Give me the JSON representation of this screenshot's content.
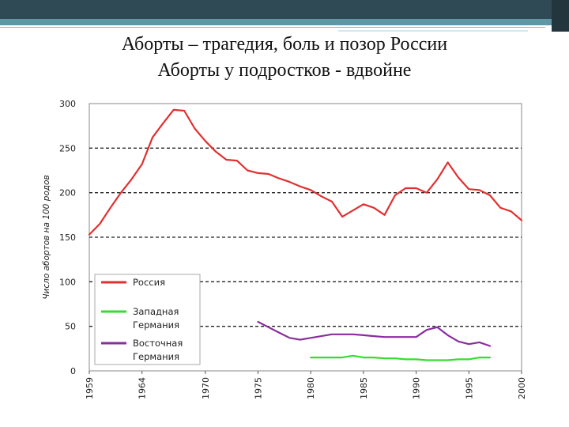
{
  "slide": {
    "title_line1": "Аборты – трагедия, боль и позор России",
    "title_line2": "Аборты у подростков - вдвойне"
  },
  "chart_data": {
    "type": "line",
    "ylabel": "Число абортов на 100 родов",
    "xlim": [
      1959,
      2000
    ],
    "ylim": [
      0,
      300
    ],
    "x_ticks": [
      1959,
      1964,
      1970,
      1975,
      1980,
      1985,
      1990,
      1995,
      2000
    ],
    "y_ticks": [
      0,
      50,
      100,
      150,
      200,
      250,
      300
    ],
    "grid": "horizontal-dashed",
    "legend_position": "bottom-left",
    "series": [
      {
        "name": "Россия",
        "color": "#e03030",
        "x": [
          1959,
          1960,
          1961,
          1962,
          1963,
          1964,
          1965,
          1966,
          1967,
          1968,
          1969,
          1970,
          1971,
          1972,
          1973,
          1974,
          1975,
          1976,
          1977,
          1978,
          1979,
          1980,
          1981,
          1982,
          1983,
          1984,
          1985,
          1986,
          1987,
          1988,
          1989,
          1990,
          1991,
          1992,
          1993,
          1994,
          1995,
          1996,
          1997,
          1998,
          1999,
          2000
        ],
        "values": [
          153,
          165,
          183,
          200,
          215,
          232,
          262,
          278,
          293,
          292,
          272,
          258,
          246,
          237,
          236,
          225,
          222,
          221,
          216,
          212,
          207,
          203,
          196,
          190,
          173,
          180,
          187,
          183,
          175,
          197,
          205,
          205,
          200,
          215,
          234,
          217,
          204,
          203,
          197,
          183,
          179,
          169
        ]
      },
      {
        "name": "Западная Германия",
        "color": "#33dd33",
        "x": [
          1980,
          1981,
          1982,
          1983,
          1984,
          1985,
          1986,
          1987,
          1988,
          1989,
          1990,
          1991,
          1992,
          1993,
          1994,
          1995,
          1996,
          1997
        ],
        "values": [
          15,
          15,
          15,
          15,
          17,
          15,
          15,
          14,
          14,
          13,
          13,
          12,
          12,
          12,
          13,
          13,
          15,
          15
        ]
      },
      {
        "name": "Восточная Германия",
        "color": "#8a2d9e",
        "x": [
          1975,
          1976,
          1977,
          1978,
          1979,
          1980,
          1981,
          1982,
          1983,
          1984,
          1985,
          1986,
          1987,
          1988,
          1989,
          1990,
          1991,
          1992,
          1993,
          1994,
          1995,
          1996,
          1997
        ],
        "values": [
          55,
          49,
          43,
          37,
          35,
          37,
          39,
          41,
          41,
          41,
          40,
          39,
          38,
          38,
          38,
          38,
          46,
          49,
          40,
          33,
          30,
          32,
          28
        ]
      }
    ],
    "legend": [
      {
        "lines": [
          "Россия"
        ],
        "color": "#e03030"
      },
      {
        "lines": [
          "Западная",
          "Германия"
        ],
        "color": "#33dd33"
      },
      {
        "lines": [
          "Восточная",
          "Германия"
        ],
        "color": "#8a2d9e"
      }
    ]
  }
}
